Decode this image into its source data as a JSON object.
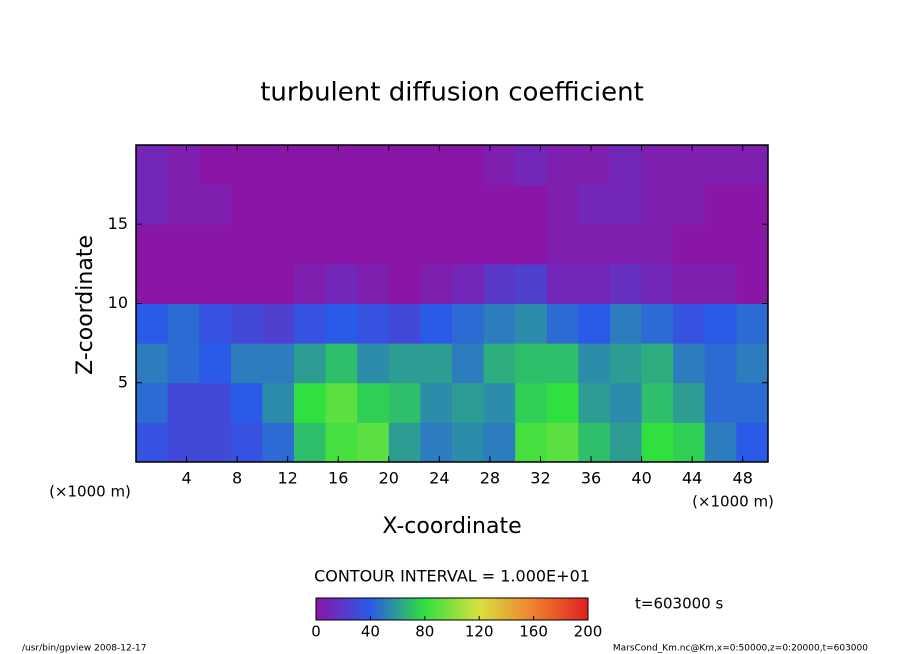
{
  "chart_data": {
    "type": "heatmap",
    "title": "turbulent diffusion coefficient",
    "xlabel": "X-coordinate",
    "ylabel": "Z-coordinate",
    "x_unit": "(×1000 m)",
    "y_unit": "(×1000 m)",
    "xlim": [
      0,
      50
    ],
    "ylim": [
      0,
      20
    ],
    "xticks": [
      4,
      8,
      12,
      16,
      20,
      24,
      28,
      32,
      36,
      40,
      44,
      48
    ],
    "yticks": [
      5,
      10,
      15
    ],
    "x": [
      1.25,
      3.75,
      6.25,
      8.75,
      11.25,
      13.75,
      16.25,
      18.75,
      21.25,
      23.75,
      26.25,
      28.75,
      31.25,
      33.75,
      36.25,
      38.75,
      41.25,
      43.75,
      46.25,
      48.75
    ],
    "y": [
      1.25,
      3.75,
      6.25,
      8.75,
      11.25,
      13.75,
      16.25,
      18.75
    ],
    "z": [
      [
        35,
        30,
        30,
        35,
        45,
        70,
        85,
        90,
        60,
        50,
        55,
        50,
        85,
        90,
        70,
        60,
        80,
        75,
        50,
        40
      ],
      [
        45,
        30,
        30,
        40,
        55,
        80,
        90,
        75,
        70,
        55,
        60,
        55,
        75,
        80,
        60,
        55,
        70,
        60,
        45,
        45
      ],
      [
        50,
        45,
        40,
        50,
        50,
        60,
        70,
        55,
        60,
        60,
        50,
        65,
        70,
        70,
        55,
        60,
        65,
        50,
        45,
        50
      ],
      [
        40,
        45,
        35,
        30,
        25,
        35,
        40,
        35,
        30,
        40,
        45,
        50,
        55,
        45,
        40,
        50,
        45,
        35,
        40,
        45
      ],
      [
        0,
        0,
        0,
        0,
        0,
        5,
        10,
        5,
        0,
        5,
        10,
        20,
        25,
        10,
        10,
        15,
        10,
        5,
        5,
        0
      ],
      [
        0,
        0,
        0,
        0,
        0,
        0,
        0,
        0,
        0,
        0,
        0,
        0,
        0,
        5,
        5,
        5,
        5,
        0,
        0,
        0
      ],
      [
        10,
        5,
        5,
        0,
        0,
        0,
        0,
        0,
        0,
        0,
        0,
        0,
        0,
        5,
        10,
        10,
        5,
        5,
        0,
        0
      ],
      [
        10,
        5,
        0,
        0,
        0,
        0,
        0,
        0,
        0,
        0,
        0,
        5,
        10,
        5,
        5,
        10,
        5,
        5,
        5,
        5
      ]
    ],
    "colorscale": [
      "#8a16a8",
      "#2a5ae8",
      "#30e040",
      "#d8e040",
      "#f08030",
      "#e02020"
    ],
    "clim": [
      0,
      200
    ],
    "cticks": [
      0,
      40,
      80,
      120,
      160,
      200
    ],
    "contour_interval": "CONTOUR INTERVAL = 1.000E+01",
    "time_label": "t=603000 s",
    "footer_left": "/usr/bin/gpview   2008-12-17",
    "footer_right": "MarsCond_Km.nc@Km,x=0:50000,z=0:20000,t=603000"
  }
}
